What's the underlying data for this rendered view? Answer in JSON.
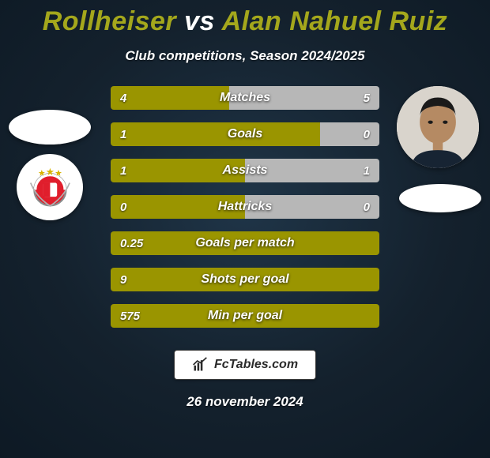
{
  "title": {
    "p1": "Rollheiser",
    "vs": "vs",
    "p2": "Alan Nahuel Ruiz"
  },
  "title_colors": {
    "p1": "#a4a71c",
    "vs": "#ffffff",
    "p2": "#a4a71c"
  },
  "subtitle": "Club competitions, Season 2024/2025",
  "date": "26 november 2024",
  "footer_brand": "FcTables.com",
  "background": {
    "top": "#14212d",
    "bottom": "#0d1924",
    "glow": "#1f3548"
  },
  "bar_colors": {
    "left": "#9a9500",
    "right": "#b7b7b7",
    "track": "rgba(255,255,255,0)"
  },
  "metrics": [
    {
      "label": "Matches",
      "left_val": "4",
      "right_val": "5",
      "left_pct": 44,
      "right_pct": 56
    },
    {
      "label": "Goals",
      "left_val": "1",
      "right_val": "0",
      "left_pct": 78,
      "right_pct": 22
    },
    {
      "label": "Assists",
      "left_val": "1",
      "right_val": "1",
      "left_pct": 50,
      "right_pct": 50
    },
    {
      "label": "Hattricks",
      "left_val": "0",
      "right_val": "0",
      "left_pct": 50,
      "right_pct": 50
    },
    {
      "label": "Goals per match",
      "left_val": "0.25",
      "right_val": "",
      "left_pct": 100,
      "right_pct": 0
    },
    {
      "label": "Shots per goal",
      "left_val": "9",
      "right_val": "",
      "left_pct": 100,
      "right_pct": 0
    },
    {
      "label": "Min per goal",
      "left_val": "575",
      "right_val": "",
      "left_pct": 100,
      "right_pct": 0
    }
  ],
  "avatars": {
    "left_player_blank": true,
    "right_player_photo": true,
    "left_club_crest": "benfica",
    "right_club_blank": true
  }
}
